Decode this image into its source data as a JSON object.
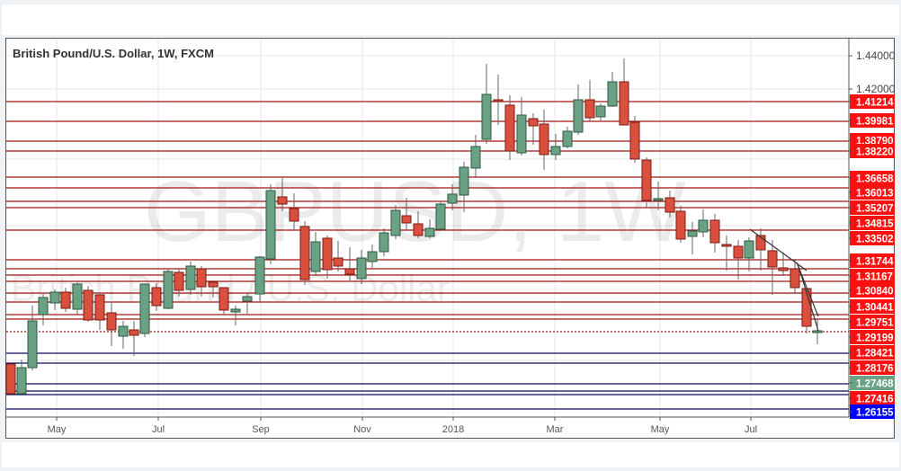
{
  "chart_data": {
    "type": "candlestick",
    "title": "British Pound/U.S. Dollar, 1W, FXCM",
    "watermark": {
      "symbol": "GBPUSD, 1W",
      "description": "British Pound / U.S. Dollar"
    },
    "x_tick_labels": [
      "May",
      "Jul",
      "Sep",
      "Nov",
      "2018",
      "Mar",
      "May",
      "Jul"
    ],
    "y_tick_labels": [
      "1.44000",
      "1.42000"
    ],
    "ylim": [
      1.26,
      1.445
    ],
    "horizontal_levels": [
      {
        "value": "1.41214",
        "color": "#ff0000",
        "kind": "resistance"
      },
      {
        "value": "1.39981",
        "color": "#ff0000",
        "kind": "resistance"
      },
      {
        "value": "1.38790",
        "color": "#ff0000",
        "kind": "resistance"
      },
      {
        "value": "1.38220",
        "color": "#ff0000",
        "kind": "resistance"
      },
      {
        "value": "1.36658",
        "color": "#ff0000",
        "kind": "resistance"
      },
      {
        "value": "1.36013",
        "color": "#ff0000",
        "kind": "resistance"
      },
      {
        "value": "1.35207",
        "color": "#ff0000",
        "kind": "resistance"
      },
      {
        "value": "1.34815",
        "color": "#ff0000",
        "kind": "resistance"
      },
      {
        "value": "1.33502",
        "color": "#ff0000",
        "kind": "resistance"
      },
      {
        "value": "1.31744",
        "color": "#ff0000",
        "kind": "resistance"
      },
      {
        "value": "1.31167",
        "color": "#ff0000",
        "kind": "resistance"
      },
      {
        "value": "1.30840",
        "color": "#ff0000",
        "kind": "resistance"
      },
      {
        "value": "1.30441",
        "color": "#ff0000",
        "kind": "resistance"
      },
      {
        "value": "1.29751",
        "color": "#ff0000",
        "kind": "resistance"
      },
      {
        "value": "1.29199",
        "color": "#ff0000",
        "kind": "resistance"
      },
      {
        "value": "1.28421",
        "color": "#ff0000",
        "kind": "support"
      },
      {
        "value": "1.28176",
        "color": "#ff0000",
        "kind": "support"
      },
      {
        "value": "1.27468",
        "color": "#6aa184",
        "kind": "current-price"
      },
      {
        "value": "1.27416",
        "color": "#ff0000",
        "kind": "support"
      },
      {
        "value": "1.26155",
        "color": "#0000ff",
        "kind": "support"
      }
    ],
    "series_colors": {
      "up": "#6aa184",
      "down": "#d9503f",
      "resistance_line": "#a31515",
      "support_line": "#0a0a5e"
    },
    "last_price": "1.27468"
  }
}
